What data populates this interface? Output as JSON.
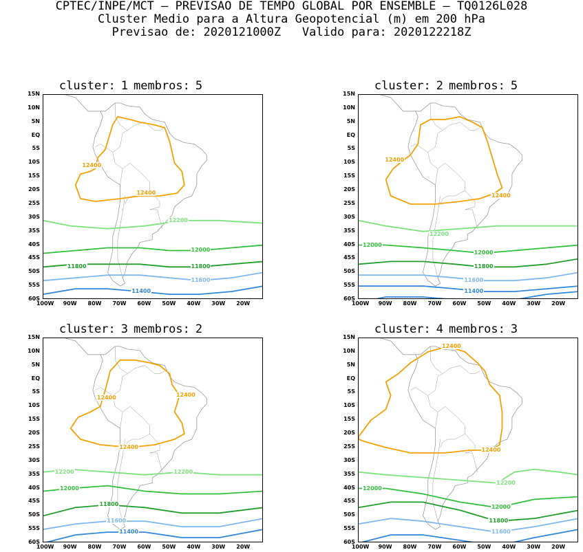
{
  "header": {
    "line1": "CPTEC/INPE/MCT – PREVISAO DE TEMPO GLOBAL POR ENSEMBLE – TQ0126L028",
    "line2": "Cluster Medio para a Altura Geopotencial (m) em 200 hPa",
    "line3_prefix": "Previsao de: 2020121000Z",
    "line3_suffix": "Valido para: 2020122218Z"
  },
  "axes": {
    "lat_labels": [
      "15N",
      "10N",
      "5N",
      "EQ",
      "5S",
      "10S",
      "15S",
      "20S",
      "25S",
      "30S",
      "35S",
      "40S",
      "45S",
      "50S",
      "55S",
      "60S"
    ],
    "lon_labels": [
      "100W",
      "90W",
      "80W",
      "70W",
      "60W",
      "50W",
      "40W",
      "30W",
      "20W"
    ]
  },
  "colors": {
    "c12400": "#f5a000",
    "c12200": "#7de37d",
    "c12000": "#2fbf3a",
    "c11800": "#1f9e2a",
    "c11600": "#7cb8ee",
    "c11400": "#2f86d8",
    "coast": "#9a9a9a"
  },
  "panels": [
    {
      "cluster_label": "cluster:",
      "cluster_num": "1",
      "membros_label": "membros:",
      "membros_num": "5",
      "contour_labels": [
        {
          "text": "12400",
          "lon": -82,
          "lat": -11,
          "color": "c12400"
        },
        {
          "text": "12400",
          "lon": -60,
          "lat": -21,
          "color": "c12400"
        },
        {
          "text": "12200",
          "lon": -47,
          "lat": -31,
          "color": "c12200"
        },
        {
          "text": "12000",
          "lon": -38,
          "lat": -42,
          "color": "c12000"
        },
        {
          "text": "11800",
          "lon": -88,
          "lat": -48,
          "color": "c11800"
        },
        {
          "text": "11800",
          "lon": -38,
          "lat": -48,
          "color": "c11800"
        },
        {
          "text": "11600",
          "lon": -38,
          "lat": -53,
          "color": "c11600"
        },
        {
          "text": "11400",
          "lon": -62,
          "lat": -57,
          "color": "c11400"
        }
      ]
    },
    {
      "cluster_label": "cluster:",
      "cluster_num": "2",
      "membros_label": "membros:",
      "membros_num": "5",
      "contour_labels": [
        {
          "text": "12400",
          "lon": -87,
          "lat": -9,
          "color": "c12400"
        },
        {
          "text": "12400",
          "lon": -44,
          "lat": -22,
          "color": "c12400"
        },
        {
          "text": "12200",
          "lon": -69,
          "lat": -36,
          "color": "c12200"
        },
        {
          "text": "12000",
          "lon": -96,
          "lat": -40,
          "color": "c12000"
        },
        {
          "text": "12000",
          "lon": -51,
          "lat": -43,
          "color": "c12000"
        },
        {
          "text": "11800",
          "lon": -51,
          "lat": -48,
          "color": "c11800"
        },
        {
          "text": "11600",
          "lon": -55,
          "lat": -53,
          "color": "c11600"
        },
        {
          "text": "11400",
          "lon": -55,
          "lat": -57,
          "color": "c11400"
        }
      ]
    },
    {
      "cluster_label": "cluster:",
      "cluster_num": "3",
      "membros_label": "membros:",
      "membros_num": "2",
      "contour_labels": [
        {
          "text": "12400",
          "lon": -44,
          "lat": -6,
          "color": "c12400"
        },
        {
          "text": "12400",
          "lon": -76,
          "lat": -7,
          "color": "c12400"
        },
        {
          "text": "12400",
          "lon": -67,
          "lat": -25,
          "color": "c12400"
        },
        {
          "text": "12200",
          "lon": -93,
          "lat": -34,
          "color": "c12200"
        },
        {
          "text": "12200",
          "lon": -45,
          "lat": -34,
          "color": "c12200"
        },
        {
          "text": "12000",
          "lon": -91,
          "lat": -40,
          "color": "c12000"
        },
        {
          "text": "11800",
          "lon": -75,
          "lat": -46,
          "color": "c11800"
        },
        {
          "text": "11600",
          "lon": -72,
          "lat": -52,
          "color": "c11600"
        },
        {
          "text": "11400",
          "lon": -67,
          "lat": -56,
          "color": "c11400"
        }
      ]
    },
    {
      "cluster_label": "cluster:",
      "cluster_num": "4",
      "membros_label": "membros:",
      "membros_num": "3",
      "contour_labels": [
        {
          "text": "12400",
          "lon": -64,
          "lat": 12,
          "color": "c12400"
        },
        {
          "text": "12400",
          "lon": -48,
          "lat": -26,
          "color": "c12400"
        },
        {
          "text": "12200",
          "lon": -42,
          "lat": -38,
          "color": "c12200"
        },
        {
          "text": "12000",
          "lon": -96,
          "lat": -40,
          "color": "c12000"
        },
        {
          "text": "12000",
          "lon": -44,
          "lat": -47,
          "color": "c12000"
        },
        {
          "text": "11800",
          "lon": -45,
          "lat": -52,
          "color": "c11800"
        },
        {
          "text": "11600",
          "lon": -44,
          "lat": -56,
          "color": "c11600"
        }
      ]
    }
  ]
}
